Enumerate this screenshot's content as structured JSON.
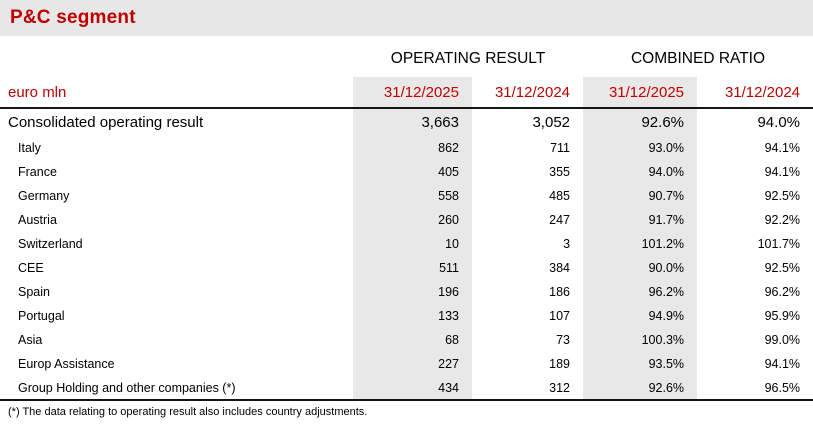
{
  "title": "P&C segment",
  "unit_label": "euro mln",
  "colors": {
    "accent_red": "#c00000",
    "title_bar_bg": "#e7e7e7",
    "highlight_column_bg": "#e8e8e8",
    "rule_black": "#141414"
  },
  "table": {
    "group_headers": [
      "OPERATING RESULT",
      "COMBINED RATIO"
    ],
    "date_headers": [
      "31/12/2025",
      "31/12/2024",
      "31/12/2025",
      "31/12/2024"
    ],
    "rows": [
      {
        "label": "Consolidated operating result",
        "total": true,
        "values": [
          "3,663",
          "3,052",
          "92.6%",
          "94.0%"
        ]
      },
      {
        "label": "Italy",
        "values": [
          "862",
          "711",
          "93.0%",
          "94.1%"
        ]
      },
      {
        "label": "France",
        "values": [
          "405",
          "355",
          "94.0%",
          "94.1%"
        ]
      },
      {
        "label": "Germany",
        "values": [
          "558",
          "485",
          "90.7%",
          "92.5%"
        ]
      },
      {
        "label": "Austria",
        "values": [
          "260",
          "247",
          "91.7%",
          "92.2%"
        ]
      },
      {
        "label": "Switzerland",
        "values": [
          "10",
          "3",
          "101.2%",
          "101.7%"
        ]
      },
      {
        "label": "CEE",
        "values": [
          "511",
          "384",
          "90.0%",
          "92.5%"
        ]
      },
      {
        "label": "Spain",
        "values": [
          "196",
          "186",
          "96.2%",
          "96.2%"
        ]
      },
      {
        "label": "Portugal",
        "values": [
          "133",
          "107",
          "94.9%",
          "95.9%"
        ]
      },
      {
        "label": "Asia",
        "values": [
          "68",
          "73",
          "100.3%",
          "99.0%"
        ]
      },
      {
        "label": "Europ Assistance",
        "values": [
          "227",
          "189",
          "93.5%",
          "94.1%"
        ]
      },
      {
        "label": "Group Holding and other companies (*)",
        "values": [
          "434",
          "312",
          "92.6%",
          "96.5%"
        ]
      }
    ]
  },
  "footnote": "(*) The data relating to operating result also includes country adjustments."
}
